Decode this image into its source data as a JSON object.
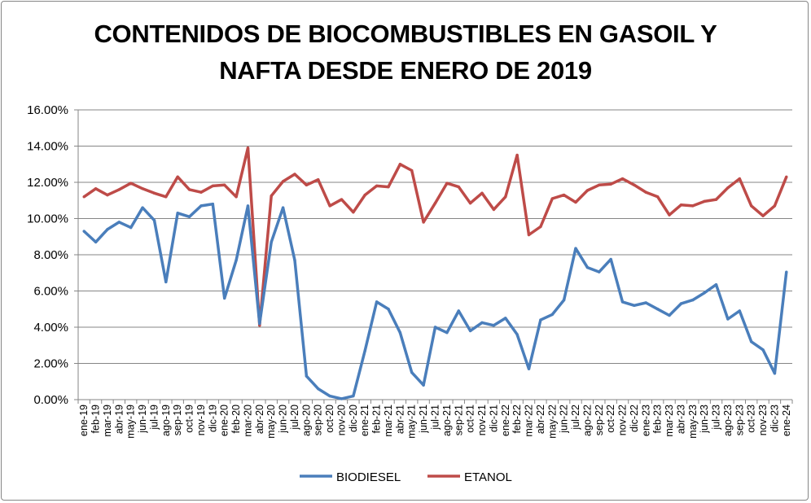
{
  "chart_data": {
    "type": "line",
    "title_lines": [
      "CONTENIDOS DE BIOCOMBUSTIBLES EN GASOIL Y",
      "NAFTA DESDE ENERO DE 2019"
    ],
    "xlabel": "",
    "ylabel": "",
    "ylim": [
      0,
      16
    ],
    "yticks": [
      "0.00%",
      "2.00%",
      "4.00%",
      "6.00%",
      "8.00%",
      "10.00%",
      "12.00%",
      "14.00%",
      "16.00%"
    ],
    "grid": true,
    "legend_position": "bottom",
    "categories": [
      "ene-19",
      "feb-19",
      "mar-19",
      "abr-19",
      "may-19",
      "jun-19",
      "jul-19",
      "ago-19",
      "sep-19",
      "oct-19",
      "nov-19",
      "dic-19",
      "ene-20",
      "feb-20",
      "mar-20",
      "abr-20",
      "may-20",
      "jun-20",
      "jul-20",
      "ago-20",
      "sep-20",
      "oct-20",
      "nov-20",
      "dic-20",
      "ene-21",
      "feb-21",
      "mar-21",
      "abr-21",
      "may-21",
      "jun-21",
      "jul-21",
      "ago-21",
      "sep-21",
      "oct-21",
      "nov-21",
      "dic-21",
      "ene-22",
      "feb-22",
      "mar-22",
      "abr-22",
      "may-22",
      "jun-22",
      "jul-22",
      "ago-22",
      "sep-22",
      "oct-22",
      "nov-22",
      "dic-22",
      "ene-23",
      "feb-23",
      "mar-23",
      "abr-23",
      "may-23",
      "jun-23",
      "jul-23",
      "ago-23",
      "sep-23",
      "oct-23",
      "nov-23",
      "dic-23",
      "ene-24"
    ],
    "series": [
      {
        "name": "BIODIESEL",
        "color": "#4a7ebb",
        "values": [
          9.3,
          8.7,
          9.4,
          9.8,
          9.5,
          10.6,
          9.9,
          6.5,
          10.3,
          10.1,
          10.7,
          10.8,
          5.6,
          7.7,
          10.7,
          4.2,
          8.7,
          10.6,
          7.7,
          1.3,
          0.6,
          0.2,
          0.05,
          0.2,
          2.7,
          5.4,
          5.0,
          3.7,
          1.5,
          0.8,
          4.0,
          3.7,
          4.9,
          3.8,
          4.25,
          4.1,
          4.5,
          3.6,
          1.7,
          4.4,
          4.7,
          5.5,
          8.35,
          7.3,
          7.05,
          7.75,
          5.4,
          5.2,
          5.35,
          5.0,
          4.65,
          5.3,
          5.5,
          5.9,
          6.35,
          4.45,
          4.9,
          3.2,
          2.75,
          1.45,
          7.05
        ]
      },
      {
        "name": "ETANOL",
        "color": "#be4b48",
        "values": [
          11.2,
          11.65,
          11.3,
          11.6,
          11.95,
          11.65,
          11.4,
          11.2,
          12.3,
          11.6,
          11.45,
          11.8,
          11.85,
          11.2,
          13.9,
          4.1,
          11.25,
          12.05,
          12.45,
          11.85,
          12.15,
          10.7,
          11.05,
          10.35,
          11.3,
          11.8,
          11.75,
          13.0,
          12.65,
          9.8,
          10.85,
          11.95,
          11.75,
          10.85,
          11.4,
          10.5,
          11.2,
          13.5,
          9.1,
          9.55,
          11.1,
          11.3,
          10.9,
          11.55,
          11.85,
          11.9,
          12.2,
          11.85,
          11.45,
          11.2,
          10.2,
          10.75,
          10.7,
          10.95,
          11.05,
          11.7,
          12.2,
          10.7,
          10.15,
          10.7,
          12.3
        ]
      }
    ]
  }
}
